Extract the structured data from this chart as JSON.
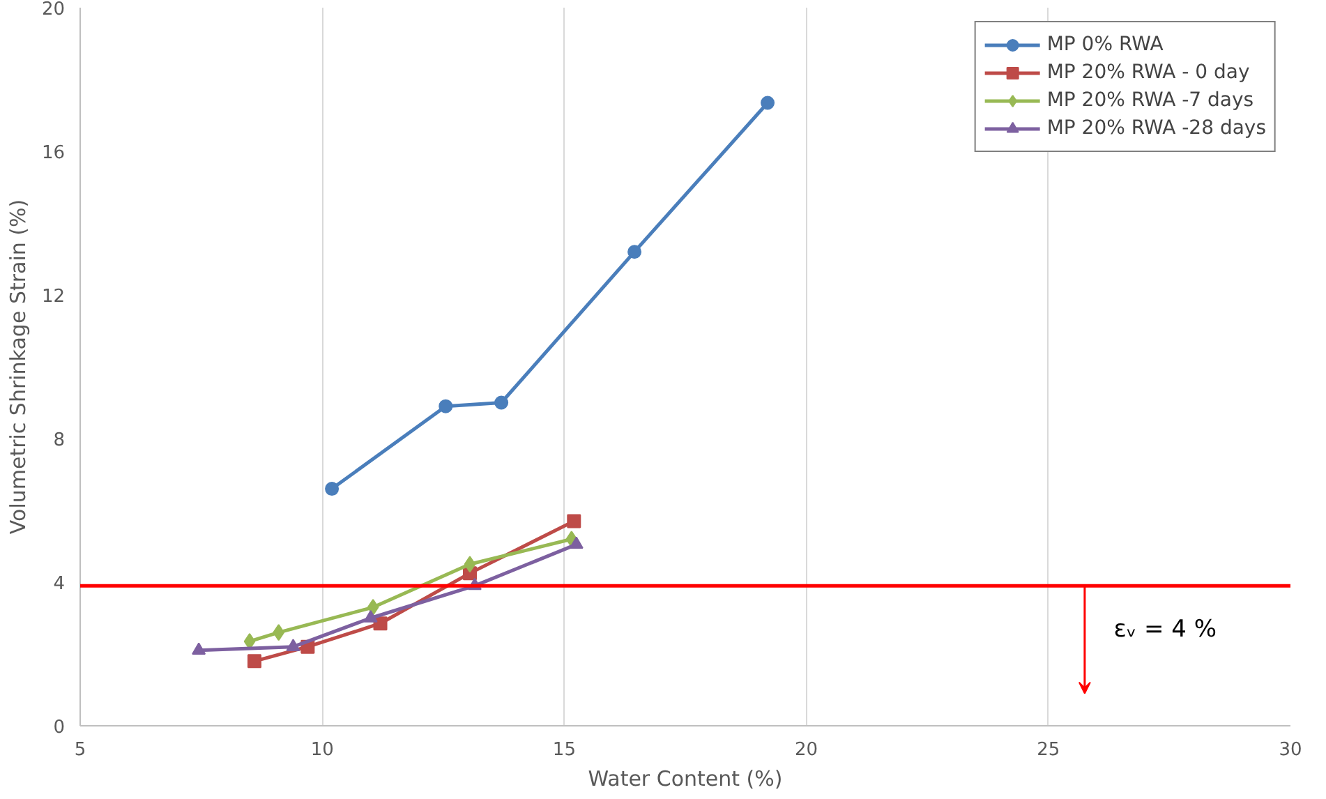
{
  "chart_data": {
    "type": "line",
    "xlabel": "Water Content (%)",
    "ylabel": "Volumetric Shrinkage Strain (%)",
    "xlim": [
      5,
      30
    ],
    "xticks": [
      5,
      10,
      15,
      20,
      25,
      30
    ],
    "ylim": [
      0,
      20
    ],
    "yticks": [
      0,
      4,
      8,
      12,
      16,
      20
    ],
    "grid": "x",
    "legend": "top right",
    "series": [
      {
        "name": "MP 0% RWA",
        "color": "#4a7ebb",
        "marker": "circle",
        "x": [
          10.2,
          12.55,
          13.7,
          16.45,
          19.2
        ],
        "values": [
          6.6,
          8.9,
          9.0,
          13.2,
          17.35
        ]
      },
      {
        "name": "MP 20% RWA - 0 day",
        "color": "#be4b48",
        "marker": "square",
        "x": [
          8.6,
          9.7,
          11.2,
          13.05,
          15.2
        ],
        "values": [
          1.8,
          2.2,
          2.85,
          4.25,
          5.7
        ]
      },
      {
        "name": "MP 20% RWA -7 days",
        "color": "#98b954",
        "marker": "diamond",
        "x": [
          8.5,
          9.1,
          11.05,
          13.05,
          15.15
        ],
        "values": [
          2.35,
          2.6,
          3.3,
          4.5,
          5.2
        ]
      },
      {
        "name": "MP 20% RWA -28 days",
        "color": "#7d60a0",
        "marker": "triangle",
        "x": [
          7.45,
          9.4,
          11.0,
          13.15,
          15.25
        ],
        "values": [
          2.1,
          2.2,
          3.0,
          3.9,
          5.05
        ]
      }
    ],
    "ref_lines": [
      {
        "axis": "y",
        "value": 3.9,
        "label": "εᵥ = 4 %",
        "color": "#ff0000"
      }
    ]
  }
}
